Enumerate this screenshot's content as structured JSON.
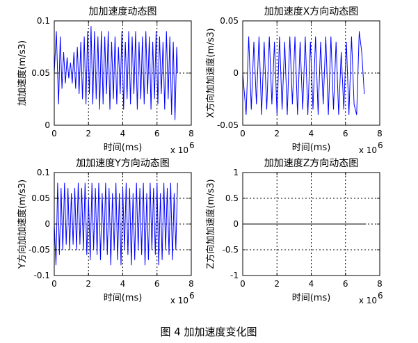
{
  "figure_caption": "图 4  加加速度变化图",
  "chart_data": [
    {
      "type": "line",
      "title": "加加速度动态图",
      "xlabel": "时间(ms)",
      "ylabel": "加加速度(m/s3)",
      "x_exponent_label": "x 10",
      "x_exponent_power": "6",
      "xlim": [
        0,
        8
      ],
      "ylim": [
        0,
        0.1
      ],
      "xticks": [
        0,
        2,
        4,
        6,
        8
      ],
      "xtick_labels": [
        "0",
        "2",
        "4",
        "6",
        "8"
      ],
      "yticks": [
        0,
        0.05,
        0.1
      ],
      "ytick_labels": [
        "0",
        "0.05",
        "0.1"
      ],
      "grid": true,
      "series_color": "#0000ff",
      "series": [
        {
          "x": [
            0,
            0.12,
            0.25,
            0.35,
            0.45,
            0.55,
            0.65,
            0.75,
            0.85,
            0.95,
            1.05,
            1.15,
            1.25,
            1.35,
            1.45,
            1.55,
            1.65,
            1.75,
            1.85,
            1.95,
            2.05,
            2.15,
            2.25,
            2.35,
            2.45,
            2.55,
            2.65,
            2.75,
            2.85,
            2.95,
            3.05,
            3.15,
            3.25,
            3.35,
            3.45,
            3.55,
            3.65,
            3.75,
            3.85,
            3.95,
            4.05,
            4.15,
            4.25,
            4.35,
            4.45,
            4.55,
            4.65,
            4.75,
            4.85,
            4.95,
            5.05,
            5.15,
            5.25,
            5.35,
            5.45,
            5.55,
            5.65,
            5.75,
            5.85,
            5.95,
            6.05,
            6.15,
            6.25,
            6.35,
            6.45,
            6.55,
            6.65,
            6.75,
            6.85,
            6.95,
            7.05,
            7.15,
            7.2
          ],
          "y": [
            0.05,
            0.09,
            0.02,
            0.085,
            0.035,
            0.07,
            0.04,
            0.065,
            0.045,
            0.06,
            0.04,
            0.07,
            0.035,
            0.075,
            0.03,
            0.08,
            0.025,
            0.085,
            0.02,
            0.09,
            0.03,
            0.095,
            0.02,
            0.09,
            0.025,
            0.085,
            0.015,
            0.09,
            0.02,
            0.085,
            0.03,
            0.09,
            0.015,
            0.08,
            0.025,
            0.085,
            0.02,
            0.075,
            0.03,
            0.09,
            0.015,
            0.08,
            0.025,
            0.09,
            0.02,
            0.085,
            0.03,
            0.09,
            0.015,
            0.08,
            0.025,
            0.085,
            0.02,
            0.09,
            0.03,
            0.085,
            0.015,
            0.08,
            0.025,
            0.09,
            0.02,
            0.085,
            0.03,
            0.08,
            0.015,
            0.09,
            0.025,
            0.085,
            0.01,
            0.08,
            0.005,
            0.075,
            0.05
          ]
        }
      ]
    },
    {
      "type": "line",
      "title": "加加速度X方向动态图",
      "xlabel": "时间(ms)",
      "ylabel": "X方向加加速度(m/s3)",
      "x_exponent_label": "x 10",
      "x_exponent_power": "6",
      "xlim": [
        0,
        8
      ],
      "ylim": [
        -0.05,
        0.05
      ],
      "xticks": [
        0,
        2,
        4,
        6,
        8
      ],
      "xtick_labels": [
        "0",
        "2",
        "4",
        "6",
        "8"
      ],
      "yticks": [
        -0.05,
        0,
        0.05
      ],
      "ytick_labels": [
        "-0.05",
        "0",
        "0.05"
      ],
      "grid": true,
      "series_color": "#0000ff",
      "series": [
        {
          "x": [
            0,
            0.2,
            0.35,
            0.5,
            0.65,
            0.8,
            0.95,
            1.1,
            1.25,
            1.4,
            1.55,
            1.7,
            1.85,
            2.0,
            2.15,
            2.3,
            2.45,
            2.6,
            2.75,
            2.9,
            3.05,
            3.2,
            3.35,
            3.5,
            3.65,
            3.8,
            3.95,
            4.1,
            4.25,
            4.4,
            4.55,
            4.7,
            4.85,
            5.0,
            5.15,
            5.3,
            5.45,
            5.6,
            5.75,
            5.9,
            6.05,
            6.2,
            6.35,
            6.5,
            6.65,
            6.8,
            6.95,
            7.1
          ],
          "y": [
            0,
            -0.04,
            0.035,
            -0.035,
            0.03,
            -0.03,
            0.035,
            -0.04,
            0.03,
            -0.035,
            0.035,
            -0.03,
            0.03,
            -0.04,
            0.035,
            -0.035,
            0.03,
            -0.04,
            0.035,
            -0.03,
            0.035,
            -0.04,
            0.03,
            -0.035,
            0.035,
            -0.04,
            0.03,
            -0.035,
            0.035,
            -0.04,
            0.03,
            -0.03,
            0.035,
            -0.04,
            0.035,
            -0.035,
            0.03,
            -0.04,
            0.02,
            -0.035,
            0.03,
            -0.04,
            0.035,
            -0.03,
            -0.04,
            0.04,
            0.02,
            -0.02
          ]
        }
      ]
    },
    {
      "type": "line",
      "title": "加加速度Y方向动态图",
      "xlabel": "时间(ms)",
      "ylabel": "Y方向加加速度(m/s3)",
      "x_exponent_label": "x 10",
      "x_exponent_power": "6",
      "xlim": [
        0,
        8
      ],
      "ylim": [
        -0.1,
        0.1
      ],
      "xticks": [
        0,
        2,
        4,
        6,
        8
      ],
      "xtick_labels": [
        "0",
        "2",
        "4",
        "6",
        "8"
      ],
      "yticks": [
        -0.1,
        -0.05,
        0,
        0.05,
        0.1
      ],
      "ytick_labels": [
        "-0.1",
        "-0.05",
        "0",
        "0.05",
        "0.1"
      ],
      "grid": true,
      "series_color": "#0000ff",
      "series": [
        {
          "x": [
            0,
            0.1,
            0.2,
            0.3,
            0.4,
            0.5,
            0.6,
            0.7,
            0.8,
            0.9,
            1.0,
            1.1,
            1.2,
            1.3,
            1.4,
            1.5,
            1.6,
            1.7,
            1.8,
            1.9,
            2.0,
            2.1,
            2.2,
            2.3,
            2.4,
            2.5,
            2.6,
            2.7,
            2.8,
            2.9,
            3.0,
            3.1,
            3.2,
            3.3,
            3.4,
            3.5,
            3.6,
            3.7,
            3.8,
            3.9,
            4.0,
            4.1,
            4.2,
            4.3,
            4.4,
            4.5,
            4.6,
            4.7,
            4.8,
            4.9,
            5.0,
            5.1,
            5.2,
            5.3,
            5.4,
            5.5,
            5.6,
            5.7,
            5.8,
            5.9,
            6.0,
            6.1,
            6.2,
            6.3,
            6.4,
            6.5,
            6.6,
            6.7,
            6.8,
            6.9,
            7.0,
            7.1,
            7.2
          ],
          "y": [
            0,
            -0.08,
            0.08,
            -0.06,
            0.07,
            -0.05,
            0.08,
            -0.04,
            0.07,
            -0.05,
            0.06,
            -0.04,
            0.07,
            -0.05,
            0.08,
            -0.04,
            0.07,
            -0.05,
            0.08,
            -0.06,
            0.05,
            -0.07,
            0.08,
            -0.05,
            0.07,
            -0.06,
            0.08,
            -0.07,
            0.06,
            -0.05,
            0.08,
            -0.06,
            0.07,
            -0.08,
            0.06,
            -0.05,
            0.08,
            -0.07,
            0.06,
            -0.08,
            0.07,
            -0.05,
            0.08,
            -0.06,
            0.07,
            -0.08,
            0.06,
            -0.07,
            0.08,
            -0.05,
            0.07,
            -0.06,
            0.08,
            -0.08,
            0.06,
            -0.07,
            0.08,
            -0.05,
            0.07,
            -0.06,
            0.08,
            -0.08,
            0.06,
            -0.07,
            0.08,
            -0.05,
            0.07,
            -0.06,
            0.08,
            -0.07,
            0.06,
            -0.05,
            0.08
          ]
        }
      ]
    },
    {
      "type": "line",
      "title": "加加速度Z方向动态图",
      "xlabel": "时间(ms)",
      "ylabel": "Z方向加加速度(m/s3)",
      "x_exponent_label": "x 10",
      "x_exponent_power": "6",
      "xlim": [
        0,
        8
      ],
      "ylim": [
        -1,
        1
      ],
      "xticks": [
        0,
        2,
        4,
        6,
        8
      ],
      "xtick_labels": [
        "0",
        "2",
        "4",
        "6",
        "8"
      ],
      "yticks": [
        -1,
        -0.5,
        0,
        0.5,
        1
      ],
      "ytick_labels": [
        "-1",
        "-0.5",
        "0",
        "0.5",
        "1"
      ],
      "grid": true,
      "series_color": "#000000",
      "series": [
        {
          "x": [
            0,
            7.2
          ],
          "y": [
            0,
            0
          ]
        }
      ]
    }
  ]
}
